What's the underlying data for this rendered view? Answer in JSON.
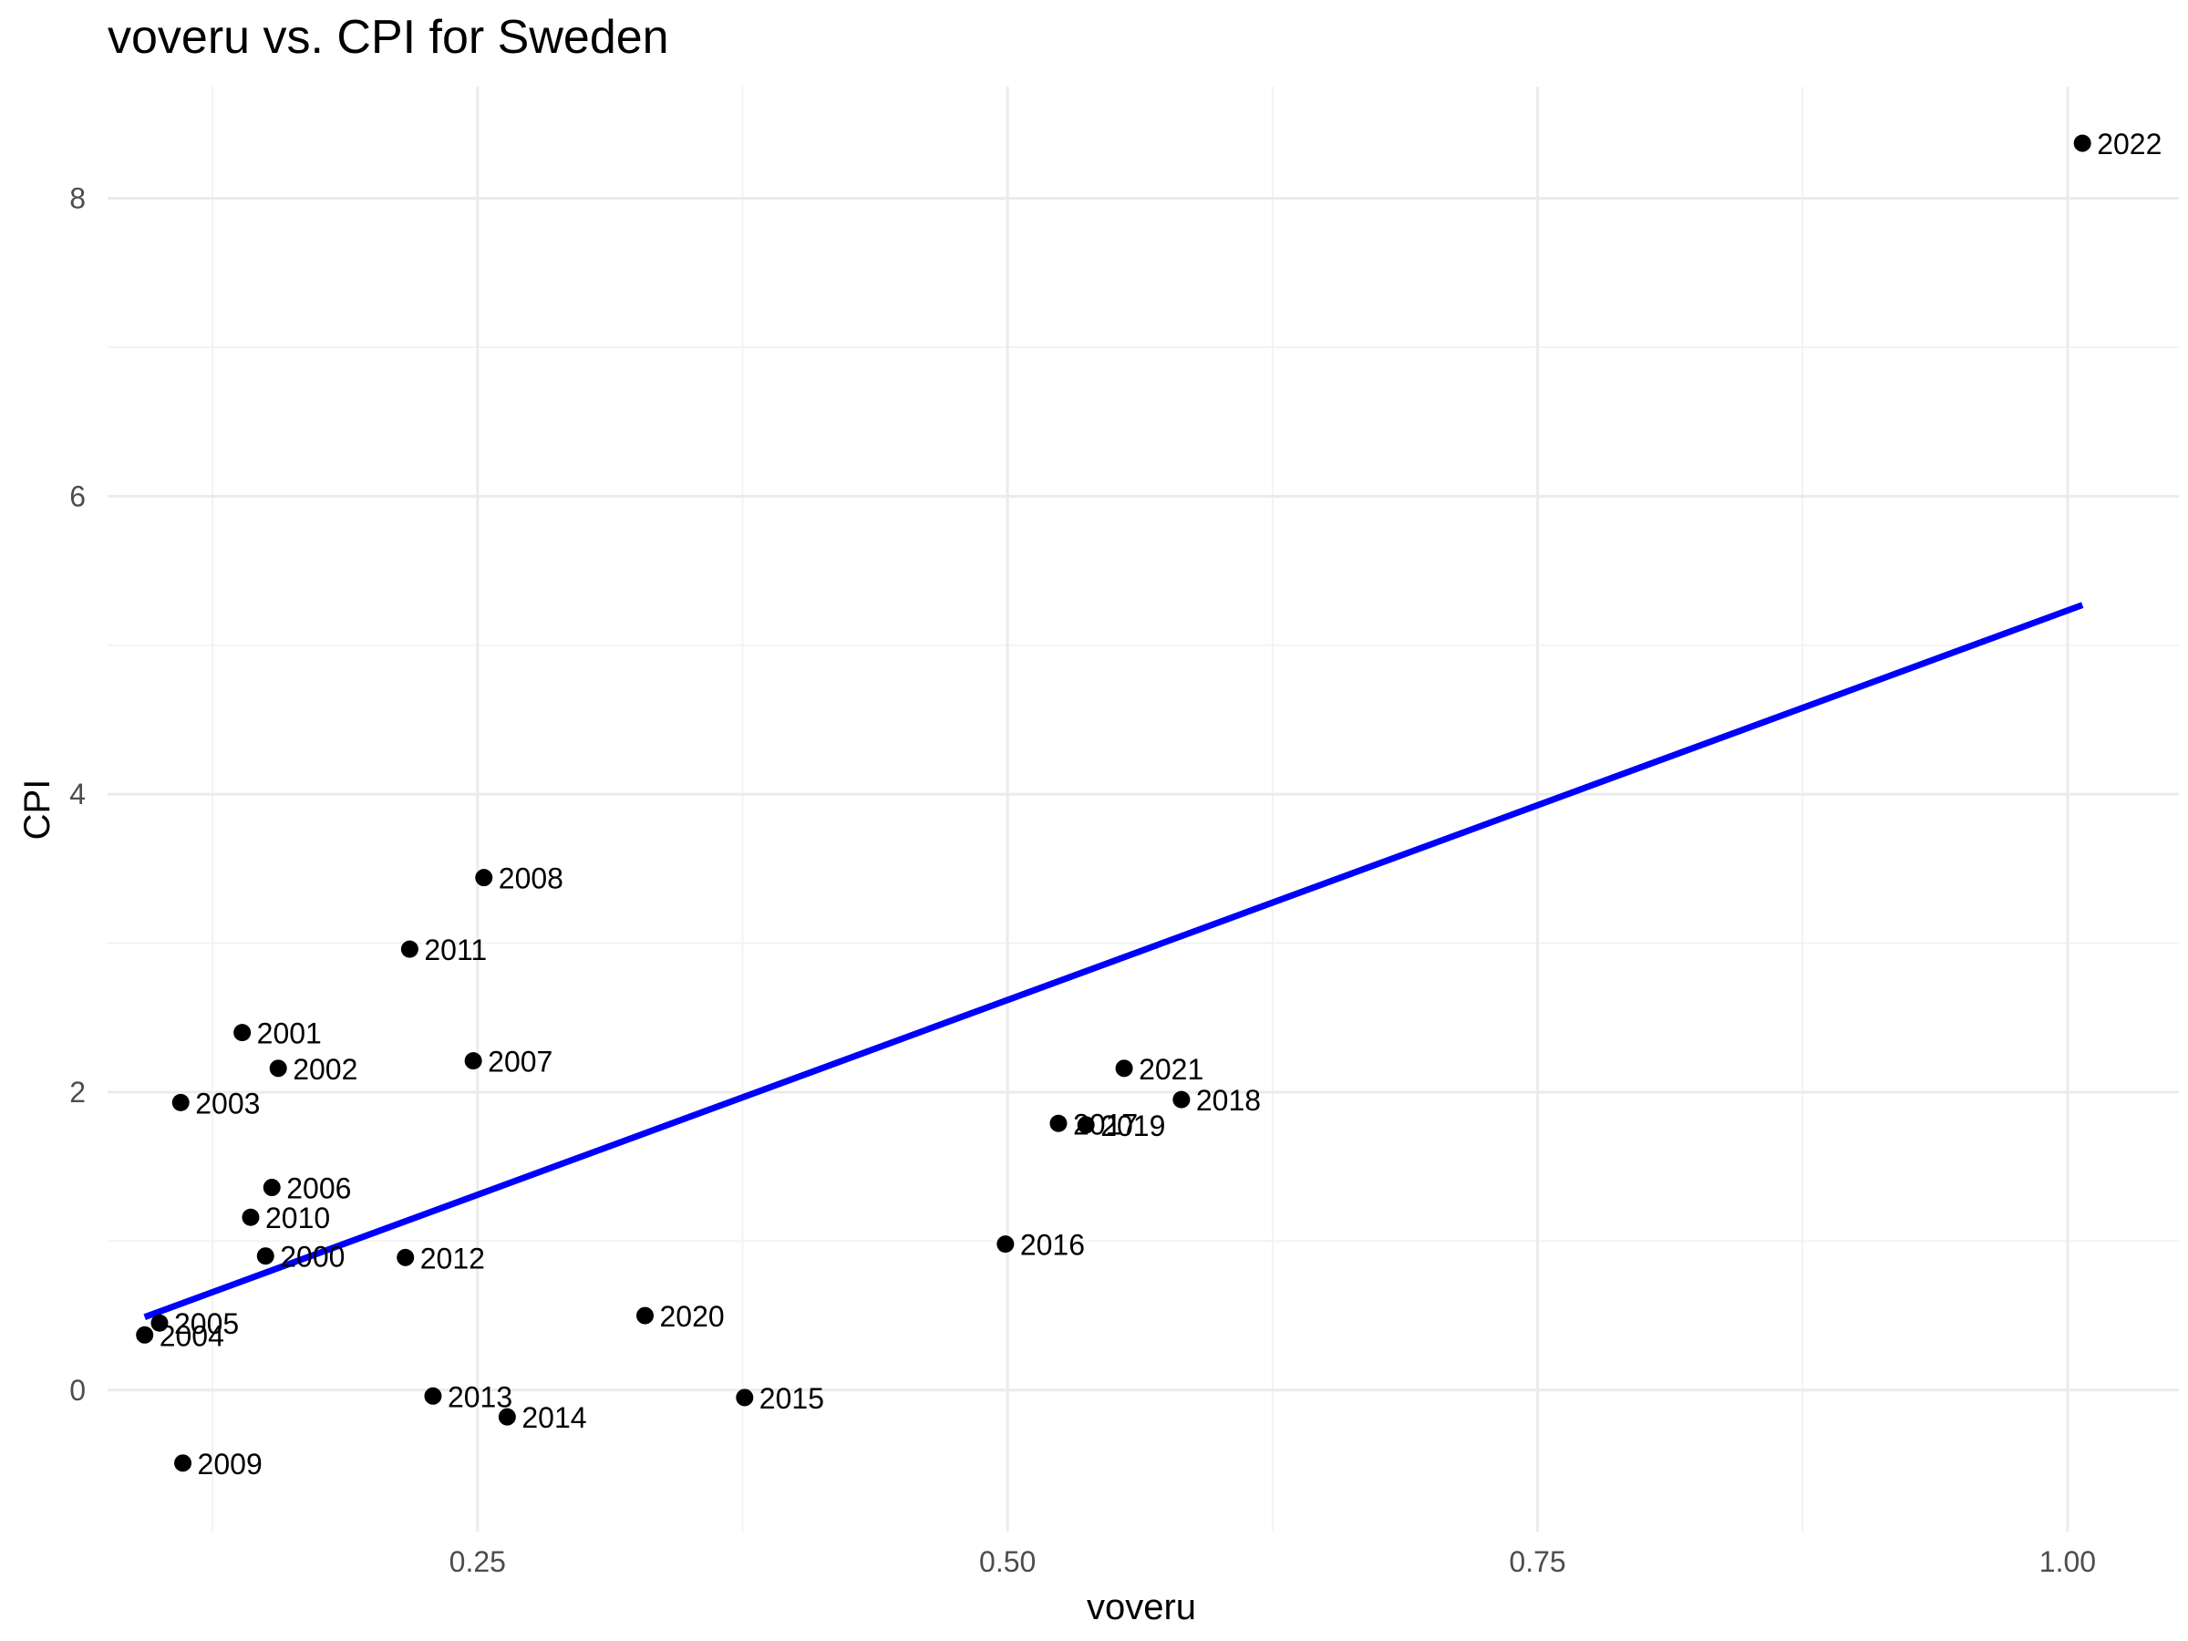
{
  "chart_data": {
    "type": "scatter",
    "title": "voveru vs. CPI for Sweden",
    "xlabel": "voveru",
    "ylabel": "CPI",
    "xlim": [
      0.0755,
      1.0525
    ],
    "ylim": [
      -0.95,
      8.75
    ],
    "x_ticks": [
      {
        "value": 0.25,
        "label": "0.25"
      },
      {
        "value": 0.5,
        "label": "0.50"
      },
      {
        "value": 0.75,
        "label": "0.75"
      },
      {
        "value": 1.0,
        "label": "1.00"
      }
    ],
    "y_ticks": [
      {
        "value": 0,
        "label": "0"
      },
      {
        "value": 2,
        "label": "2"
      },
      {
        "value": 4,
        "label": "4"
      },
      {
        "value": 6,
        "label": "6"
      },
      {
        "value": 8,
        "label": "8"
      }
    ],
    "x_minor_ticks": [
      0.125,
      0.375,
      0.625,
      0.875
    ],
    "y_minor_ticks": [
      1,
      3,
      5,
      7
    ],
    "grid": true,
    "colors": {
      "points": "#000000",
      "fit_line": "#0000ff"
    },
    "points": [
      {
        "label": "2000",
        "x": 0.15,
        "y": 0.9
      },
      {
        "label": "2001",
        "x": 0.139,
        "y": 2.4
      },
      {
        "label": "2002",
        "x": 0.156,
        "y": 2.16
      },
      {
        "label": "2003",
        "x": 0.11,
        "y": 1.93
      },
      {
        "label": "2004",
        "x": 0.093,
        "y": 0.37
      },
      {
        "label": "2005",
        "x": 0.1,
        "y": 0.45
      },
      {
        "label": "2006",
        "x": 0.153,
        "y": 1.36
      },
      {
        "label": "2007",
        "x": 0.248,
        "y": 2.21
      },
      {
        "label": "2008",
        "x": 0.253,
        "y": 3.44
      },
      {
        "label": "2009",
        "x": 0.111,
        "y": -0.49
      },
      {
        "label": "2010",
        "x": 0.143,
        "y": 1.16
      },
      {
        "label": "2011",
        "x": 0.218,
        "y": 2.96
      },
      {
        "label": "2012",
        "x": 0.216,
        "y": 0.89
      },
      {
        "label": "2013",
        "x": 0.229,
        "y": -0.04
      },
      {
        "label": "2014",
        "x": 0.264,
        "y": -0.18
      },
      {
        "label": "2015",
        "x": 0.376,
        "y": -0.05
      },
      {
        "label": "2016",
        "x": 0.499,
        "y": 0.98
      },
      {
        "label": "2017",
        "x": 0.524,
        "y": 1.79
      },
      {
        "label": "2018",
        "x": 0.582,
        "y": 1.95
      },
      {
        "label": "2019",
        "x": 0.537,
        "y": 1.78
      },
      {
        "label": "2020",
        "x": 0.329,
        "y": 0.5
      },
      {
        "label": "2021",
        "x": 0.555,
        "y": 2.16
      },
      {
        "label": "2022",
        "x": 1.007,
        "y": 8.37
      }
    ],
    "fit_line": {
      "x": [
        0.093,
        1.007
      ],
      "y": [
        0.49,
        5.27
      ]
    }
  }
}
